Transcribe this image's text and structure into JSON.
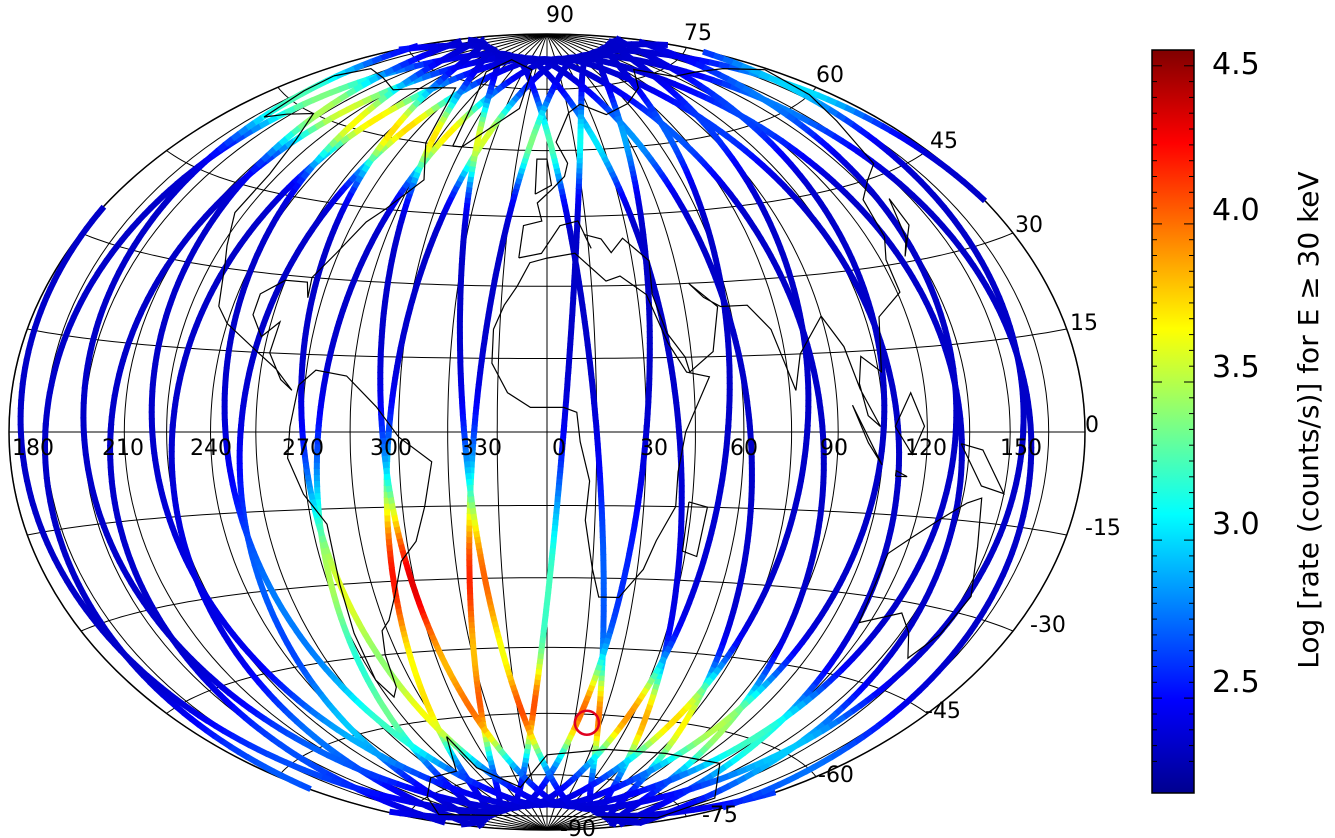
{
  "map": {
    "projection": "hammer-aitoff",
    "center_longitude": 0,
    "longitude_labels": [
      "180",
      "210",
      "240",
      "270",
      "300",
      "330",
      "0",
      "30",
      "60",
      "90",
      "120",
      "150"
    ],
    "latitude_labels_north": [
      "90",
      "75",
      "60",
      "45",
      "30",
      "15",
      "0"
    ],
    "latitude_labels_south": [
      "-15",
      "-30",
      "-45",
      "-60",
      "-75",
      "-90"
    ],
    "marker": {
      "type": "circle",
      "color": "#e00020",
      "lon": 22,
      "lat": -62
    }
  },
  "colorbar": {
    "title": "Log [rate (counts/s)] for E ≥ 30 keV",
    "min": 2.2,
    "max": 4.55,
    "tick_labels": [
      "2.5",
      "3.0",
      "3.5",
      "4.0",
      "4.5"
    ],
    "tick_values": [
      2.5,
      3.0,
      3.5,
      4.0,
      4.5
    ],
    "colormap": [
      "#00008f",
      "#0000ff",
      "#0080ff",
      "#00ffff",
      "#80ff80",
      "#ffff00",
      "#ff8000",
      "#ff0000",
      "#800000"
    ]
  },
  "chart_data": {
    "type": "heatmap",
    "description_units": "Log rate (counts/s), E >= 30 keV",
    "xlabel": "",
    "ylabel": "",
    "xlim": [
      -180,
      180
    ],
    "ylim": [
      -90,
      90
    ],
    "orbits_ascending_node_longitudes": [
      -165,
      -140,
      -118,
      -95,
      -70,
      -48,
      -22,
      5,
      30,
      55,
      80,
      105,
      130,
      155
    ]
  }
}
